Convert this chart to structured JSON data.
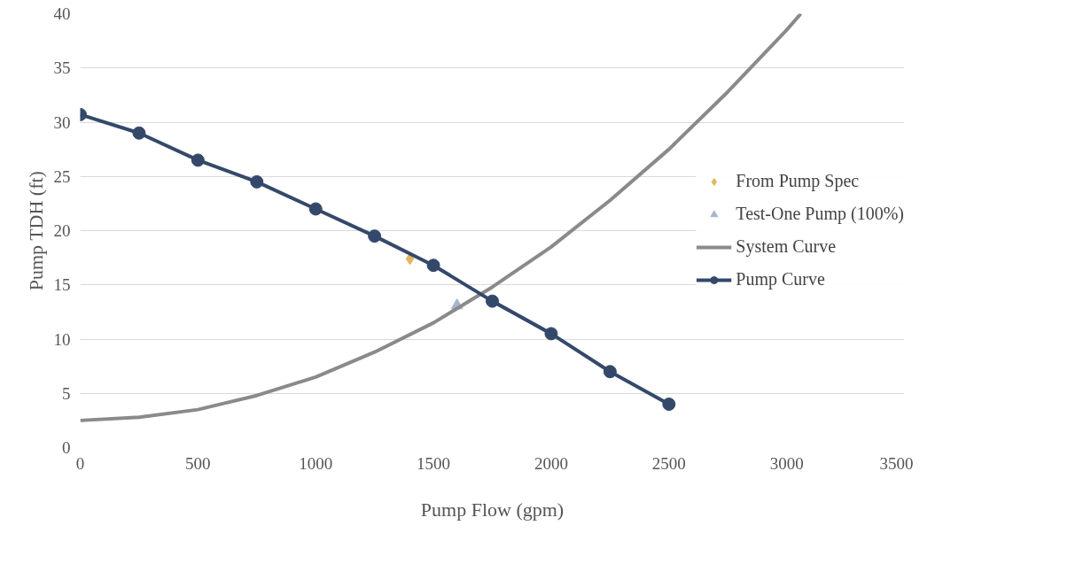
{
  "chart_data": {
    "type": "line",
    "xlabel": "Pump Flow (gpm)",
    "ylabel": "Pump TDH (ft)",
    "xlim": [
      0,
      3500
    ],
    "xticks": [
      0,
      500,
      1000,
      1500,
      2000,
      2500,
      3000,
      3500
    ],
    "ylim": [
      0,
      40
    ],
    "yticks": [
      0,
      5,
      10,
      15,
      20,
      25,
      30,
      35,
      40
    ],
    "grid": "y",
    "legend": "right",
    "series": [
      {
        "name": "From Pump Spec",
        "type": "scatter",
        "marker": "diamond",
        "color": "#e2b560",
        "x": [
          1400
        ],
        "values": [
          17.4
        ]
      },
      {
        "name": "Test-One Pump (100%)",
        "type": "scatter",
        "marker": "triangle",
        "color": "#a7b6cc",
        "x": [
          1600
        ],
        "values": [
          13.1
        ]
      },
      {
        "name": "System Curve",
        "marker": "none",
        "color": "#8a8a8a",
        "x": [
          0,
          250,
          500,
          750,
          1000,
          1250,
          1500,
          1750,
          2000,
          2250,
          2500,
          2750,
          3000,
          3060
        ],
        "values": [
          2.5,
          2.8,
          3.5,
          4.8,
          6.5,
          8.8,
          11.5,
          14.8,
          18.5,
          22.8,
          27.5,
          32.8,
          38.5,
          40
        ]
      },
      {
        "name": "Pump Curve",
        "marker": "circle",
        "color": "#34496a",
        "x": [
          0,
          250,
          500,
          750,
          1000,
          1250,
          1500,
          1750,
          2000,
          2250,
          2500
        ],
        "values": [
          30.7,
          29,
          26.5,
          24.5,
          22,
          19.5,
          16.8,
          13.5,
          10.5,
          7,
          4
        ]
      }
    ]
  }
}
